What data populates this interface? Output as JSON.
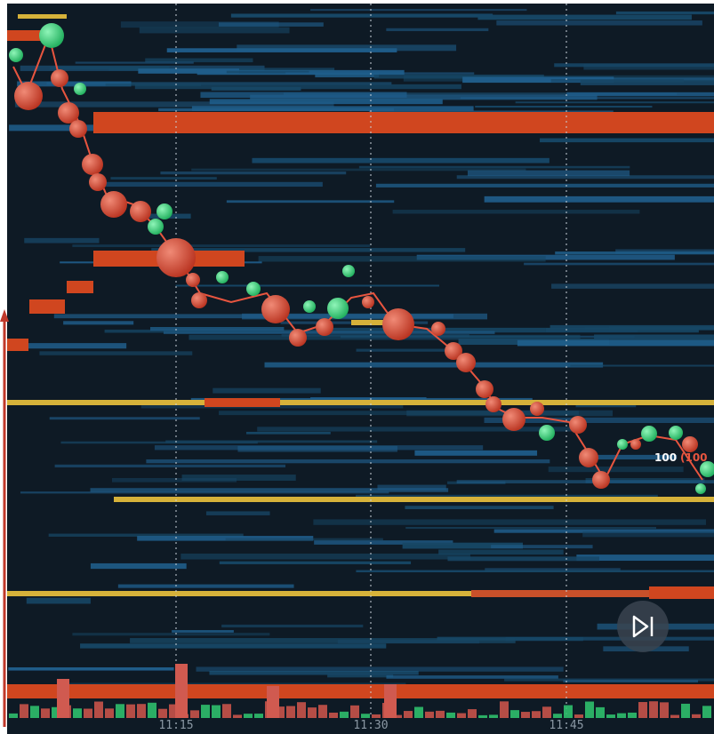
{
  "time_axis": {
    "labels": [
      "11:15",
      "11:30",
      "11:45"
    ]
  },
  "price_label": {
    "value": "100",
    "size": "(100"
  }
}
